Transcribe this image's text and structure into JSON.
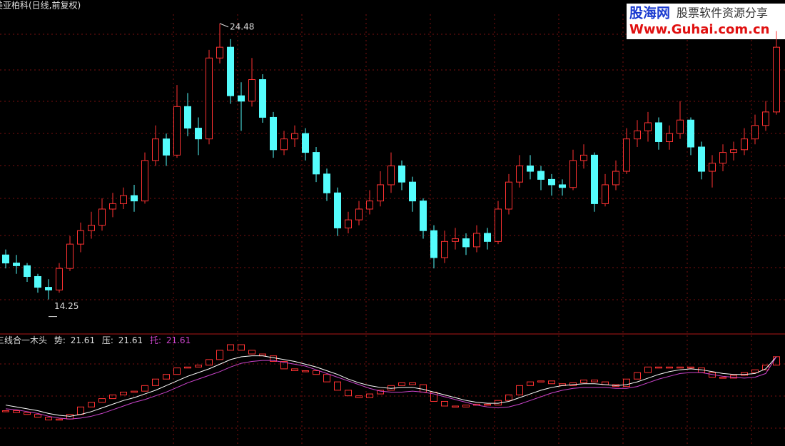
{
  "chart_data": [
    {
      "type": "candlestick",
      "title": "美亚柏科(日线,前复权)",
      "up_color": "#ff3232",
      "down_color": "#54fcfc",
      "ylim": [
        12.97,
        25.35
      ],
      "high_label": 24.48,
      "low_label": 14.25,
      "open": [
        15.9,
        15.6,
        15.5,
        15.1,
        14.7,
        14.6,
        15.4,
        16.3,
        16.8,
        17.0,
        17.6,
        17.8,
        18.1,
        17.9,
        19.4,
        20.2,
        19.6,
        21.4,
        20.6,
        20.2,
        23.2,
        23.6,
        21.8,
        21.6,
        22.4,
        21.0,
        19.8,
        20.2,
        20.4,
        19.7,
        18.9,
        18.2,
        16.9,
        17.2,
        17.6,
        17.9,
        18.5,
        19.2,
        18.6,
        17.9,
        16.8,
        15.8,
        16.4,
        16.5,
        16.2,
        16.7,
        16.4,
        17.6,
        18.6,
        19.2,
        19.0,
        18.7,
        18.5,
        18.4,
        19.4,
        19.6,
        17.8,
        18.5,
        19.0,
        20.2,
        20.5,
        20.8,
        20.1,
        20.4,
        20.9,
        19.9,
        19.0,
        19.3,
        19.7,
        19.8,
        20.2,
        20.7,
        21.2
      ],
      "high": [
        16.1,
        15.9,
        15.6,
        15.2,
        15.0,
        15.6,
        16.6,
        17.1,
        17.5,
        18.0,
        18.2,
        18.4,
        18.5,
        19.7,
        20.7,
        20.4,
        22.2,
        21.9,
        21.0,
        23.5,
        24.48,
        23.9,
        22.3,
        23.2,
        22.6,
        21.2,
        20.5,
        20.7,
        20.6,
        19.9,
        19.1,
        18.4,
        17.5,
        17.9,
        18.3,
        19.0,
        19.7,
        19.4,
        18.8,
        18.0,
        17.0,
        16.8,
        16.9,
        16.7,
        17.0,
        16.9,
        17.9,
        18.9,
        19.6,
        19.6,
        19.2,
        18.9,
        18.7,
        19.8,
        20.0,
        19.7,
        18.9,
        19.4,
        20.6,
        20.9,
        21.2,
        21.0,
        20.7,
        21.6,
        21.0,
        20.1,
        19.6,
        20.0,
        20.1,
        20.6,
        21.1,
        21.6,
        24.2
      ],
      "low": [
        15.4,
        15.2,
        14.9,
        14.5,
        14.25,
        14.5,
        15.3,
        16.0,
        16.5,
        16.8,
        17.3,
        17.6,
        17.5,
        17.8,
        19.2,
        19.2,
        19.5,
        20.3,
        19.6,
        20.0,
        23.0,
        21.5,
        20.5,
        21.4,
        20.8,
        19.5,
        19.6,
        19.9,
        19.4,
        18.6,
        17.9,
        16.6,
        16.7,
        17.0,
        17.4,
        17.7,
        18.2,
        18.3,
        17.5,
        16.5,
        15.4,
        15.6,
        16.1,
        15.9,
        16.0,
        16.1,
        16.3,
        17.4,
        18.4,
        18.7,
        18.3,
        18.1,
        18.1,
        18.3,
        19.1,
        17.5,
        17.7,
        18.3,
        18.9,
        19.9,
        20.1,
        19.8,
        19.8,
        20.2,
        19.6,
        18.7,
        18.4,
        19.0,
        19.4,
        19.6,
        20.0,
        20.5,
        21.1
      ],
      "close": [
        15.6,
        15.5,
        15.1,
        14.7,
        14.6,
        15.4,
        16.3,
        16.8,
        17.0,
        17.6,
        17.8,
        18.1,
        17.9,
        19.4,
        20.2,
        19.6,
        21.4,
        20.6,
        20.2,
        23.2,
        23.6,
        21.8,
        21.6,
        22.4,
        21.0,
        19.8,
        20.2,
        20.4,
        19.7,
        18.9,
        18.2,
        16.9,
        17.2,
        17.6,
        17.9,
        18.5,
        19.2,
        18.6,
        17.9,
        16.8,
        15.8,
        16.4,
        16.5,
        16.2,
        16.7,
        16.4,
        17.6,
        18.6,
        19.2,
        19.0,
        18.7,
        18.5,
        18.4,
        19.4,
        19.6,
        17.8,
        18.5,
        19.0,
        20.2,
        20.5,
        20.8,
        20.1,
        20.4,
        20.9,
        19.9,
        19.0,
        19.3,
        19.7,
        19.8,
        20.2,
        20.7,
        21.2,
        23.6
      ]
    },
    {
      "type": "indicator",
      "title": "三线合一木头",
      "ylim": [
        12.0,
        23.9
      ],
      "series": [
        {
          "name": "势:",
          "color": "#ff3232",
          "values": [
            15.8,
            15.6,
            15.4,
            15.1,
            14.8,
            14.9,
            15.4,
            16.2,
            16.7,
            17.1,
            17.5,
            17.8,
            17.9,
            18.5,
            19.2,
            19.7,
            20.4,
            20.5,
            20.7,
            21.3,
            22.3,
            22.9,
            22.3,
            21.9,
            21.7,
            21.1,
            20.3,
            20.1,
            20.1,
            19.7,
            18.9,
            18.0,
            17.4,
            17.2,
            17.6,
            18.0,
            18.5,
            18.8,
            18.6,
            17.8,
            16.8,
            16.3,
            16.2,
            16.4,
            16.5,
            16.4,
            16.9,
            17.5,
            18.5,
            18.9,
            19.0,
            18.7,
            18.5,
            18.8,
            19.1,
            18.9,
            18.6,
            18.4,
            19.2,
            19.9,
            20.5,
            20.5,
            20.4,
            20.5,
            20.4,
            19.9,
            19.4,
            19.3,
            19.6,
            19.9,
            20.2,
            20.7,
            21.61
          ]
        },
        {
          "name": "压:",
          "color": "#ffffff",
          "values": [
            16.4,
            16.2,
            16.0,
            15.8,
            15.5,
            15.3,
            15.2,
            15.4,
            15.7,
            16.1,
            16.5,
            16.9,
            17.2,
            17.6,
            18.0,
            18.5,
            19.0,
            19.5,
            19.9,
            20.3,
            20.8,
            21.3,
            21.6,
            21.7,
            21.7,
            21.5,
            21.3,
            21.1,
            20.8,
            20.5,
            20.1,
            19.7,
            19.2,
            18.8,
            18.5,
            18.3,
            18.2,
            18.3,
            18.3,
            18.1,
            17.8,
            17.5,
            17.2,
            16.9,
            16.7,
            16.6,
            16.6,
            16.8,
            17.2,
            17.6,
            18.0,
            18.3,
            18.5,
            18.6,
            18.7,
            18.7,
            18.6,
            18.5,
            18.6,
            18.9,
            19.3,
            19.7,
            20.0,
            20.2,
            20.3,
            20.2,
            20.0,
            19.8,
            19.7,
            19.7,
            19.8,
            20.3,
            21.61
          ]
        },
        {
          "name": "托:",
          "color": "#cc44cc",
          "values": [
            16.0,
            15.9,
            15.7,
            15.5,
            15.2,
            15.0,
            14.9,
            15.0,
            15.2,
            15.5,
            15.9,
            16.3,
            16.7,
            17.0,
            17.4,
            17.8,
            18.3,
            18.8,
            19.2,
            19.6,
            20.0,
            20.5,
            20.9,
            21.1,
            21.2,
            21.2,
            21.0,
            20.8,
            20.6,
            20.2,
            19.8,
            19.4,
            19.0,
            18.6,
            18.2,
            17.9,
            17.8,
            17.8,
            17.9,
            17.8,
            17.6,
            17.3,
            17.0,
            16.7,
            16.4,
            16.2,
            16.1,
            16.2,
            16.5,
            16.9,
            17.3,
            17.7,
            18.0,
            18.2,
            18.3,
            18.3,
            18.3,
            18.2,
            18.2,
            18.4,
            18.8,
            19.2,
            19.5,
            19.8,
            19.9,
            19.9,
            19.7,
            19.5,
            19.4,
            19.3,
            19.4,
            19.8,
            21.61
          ]
        }
      ]
    }
  ],
  "watermark": {
    "site_name": "股海网",
    "tagline": "股票软件资源分享",
    "url": "Www.Guhai.com.cn"
  }
}
